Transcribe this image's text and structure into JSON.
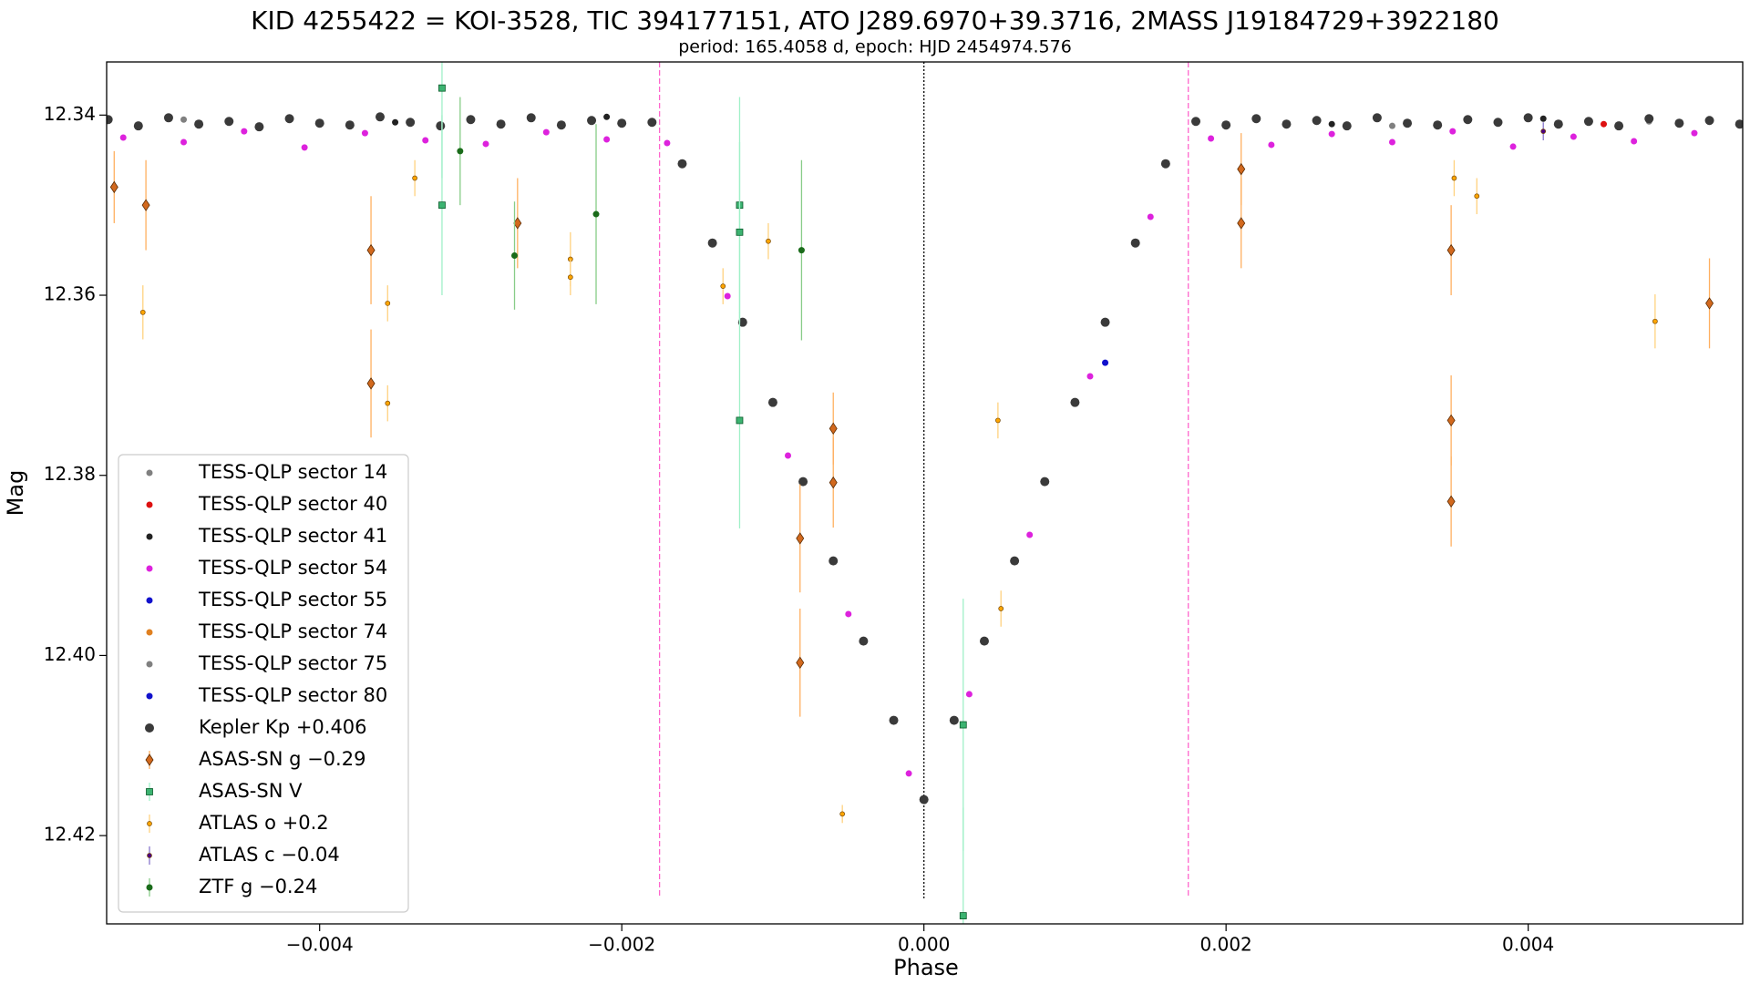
{
  "chart_data": {
    "type": "scatter",
    "title": "KID 4255422 = KOI-3528, TIC 394177151, ATO J289.6970+39.3716, 2MASS J19184729+3922180",
    "subtitle": "period: 165.4058 d, epoch: HJD 2454974.576",
    "x_label": "Phase",
    "y_label": "Mag",
    "xlim": [
      -0.00541,
      0.00542
    ],
    "ylim": [
      12.3341,
      12.4298
    ],
    "y_inverted": true,
    "xticks": [
      {
        "value": -0.004,
        "label": "−0.004"
      },
      {
        "value": -0.002,
        "label": "−0.002"
      },
      {
        "value": 0,
        "label": "0.000"
      },
      {
        "value": 0.002,
        "label": "0.002"
      },
      {
        "value": 0.004,
        "label": "0.004"
      }
    ],
    "yticks": [
      12.34,
      12.36,
      12.38,
      {
        "value": 12.4,
        "label": "12.40"
      },
      12.42
    ],
    "legend": "lower left",
    "vlines": [
      {
        "x": -0.00175,
        "color": "#ff66cc",
        "style": "dashed"
      },
      {
        "x": 0,
        "color": "#000000",
        "style": "dotted"
      },
      {
        "x": 0.00175,
        "color": "#ff66cc",
        "style": "dashed"
      }
    ],
    "series": [
      {
        "name": "TESS-QLP sector 14",
        "color": "#808080",
        "marker": "circle",
        "x": [
          -0.0049,
          0.0031
        ],
        "values": [
          12.3405,
          12.3412
        ]
      },
      {
        "name": "TESS-QLP sector 40",
        "color": "#dd1111",
        "marker": "circle",
        "x": [
          0.0045
        ],
        "values": [
          12.341
        ]
      },
      {
        "name": "TESS-QLP sector 41",
        "color": "#222222",
        "marker": "circle",
        "x": [
          -0.0035,
          -0.0021,
          0.0027,
          0.0041
        ],
        "values": [
          12.3408,
          12.3402,
          12.341,
          12.3404
        ]
      },
      {
        "name": "TESS-QLP sector 54",
        "color": "#dd22dd",
        "marker": "circle",
        "x": [
          -0.0053,
          -0.0049,
          -0.0045,
          -0.0041,
          -0.0037,
          -0.0033,
          -0.0029,
          -0.0025,
          -0.0021,
          -0.0017,
          -0.0013,
          -0.0009,
          -0.0005,
          -0.0001,
          0.0003,
          0.0007,
          0.0011,
          0.0015,
          0.0019,
          0.0023,
          0.0027,
          0.0031,
          0.0035,
          0.0039,
          0.0043,
          0.0047,
          0.0051
        ],
        "values": [
          12.3425,
          12.343,
          12.3418,
          12.3436,
          12.342,
          12.3428,
          12.3432,
          12.3419,
          12.3427,
          12.3431,
          12.3601,
          12.3778,
          12.3954,
          12.4131,
          12.4043,
          12.3866,
          12.369,
          12.3513,
          12.3426,
          12.3433,
          12.3421,
          12.343,
          12.3418,
          12.3435,
          12.3424,
          12.3429,
          12.342
        ]
      },
      {
        "name": "TESS-QLP sector 55",
        "color": "#1111cc",
        "marker": "circle",
        "x": [
          0.0012
        ],
        "values": [
          12.3675
        ]
      },
      {
        "name": "TESS-QLP sector 74",
        "color": "#e08020",
        "marker": "circle",
        "x": [
          -0.0044
        ],
        "values": [
          12.3412
        ]
      },
      {
        "name": "TESS-QLP sector 75",
        "color": "#808080",
        "marker": "circle",
        "x": [
          0.0048
        ],
        "values": [
          12.3407
        ]
      },
      {
        "name": "TESS-QLP sector 80",
        "color": "#1111cc",
        "marker": "circle",
        "x": [
          -0.0028
        ],
        "values": [
          12.3411
        ]
      },
      {
        "name": "Kepler Kp +0.406",
        "color": "#3a3a3a",
        "marker": "bigcircle",
        "x": [
          -0.0054,
          -0.0052,
          -0.005,
          -0.0048,
          -0.0046,
          -0.0044,
          -0.0042,
          -0.004,
          -0.0038,
          -0.0036,
          -0.0034,
          -0.0032,
          -0.003,
          -0.0028,
          -0.0026,
          -0.0024,
          -0.0022,
          -0.002,
          -0.0018,
          -0.0016,
          -0.0014,
          -0.0012,
          -0.001,
          -0.0008,
          -0.0006,
          -0.0004,
          -0.0002,
          0,
          0.0002,
          0.0004,
          0.0006,
          0.0008,
          0.001,
          0.0012,
          0.0014,
          0.0016,
          0.0018,
          0.002,
          0.0022,
          0.0024,
          0.0026,
          0.0028,
          0.003,
          0.0032,
          0.0034,
          0.0036,
          0.0038,
          0.004,
          0.0042,
          0.0044,
          0.0046,
          0.0048,
          0.005,
          0.0052,
          0.0054
        ],
        "values": [
          12.3405,
          12.3412,
          12.3403,
          12.341,
          12.3407,
          12.3413,
          12.3404,
          12.3409,
          12.3411,
          12.3402,
          12.3408,
          12.3412,
          12.3405,
          12.341,
          12.3403,
          12.3411,
          12.3406,
          12.3409,
          12.3408,
          12.3454,
          12.3542,
          12.363,
          12.3719,
          12.3807,
          12.3895,
          12.3984,
          12.4072,
          12.416,
          12.4072,
          12.3984,
          12.3895,
          12.3807,
          12.3719,
          12.363,
          12.3542,
          12.3454,
          12.3407,
          12.3411,
          12.3404,
          12.341,
          12.3406,
          12.3412,
          12.3403,
          12.3409,
          12.3411,
          12.3405,
          12.3408,
          12.3403,
          12.341,
          12.3407,
          12.3412,
          12.3404,
          12.3409,
          12.3406,
          12.341
        ]
      },
      {
        "name": "ASAS-SN g −0.29",
        "color": "#d2691e",
        "errcolor": "#ffb060",
        "marker": "diamond",
        "x": [
          -0.00536,
          -0.00515,
          -0.00366,
          -0.00366,
          -0.00269,
          -0.0006,
          -0.0006,
          -0.00082,
          -0.00082,
          0.0021,
          0.0021,
          0.00349,
          0.00349,
          0.00349,
          0.0052
        ],
        "values": [
          12.348,
          12.35,
          12.355,
          12.3698,
          12.352,
          12.3748,
          12.3808,
          12.387,
          12.4008,
          12.346,
          12.352,
          12.355,
          12.3739,
          12.3829,
          12.3609
        ],
        "errors": [
          0.004,
          0.005,
          0.006,
          0.006,
          0.005,
          0.004,
          0.005,
          0.006,
          0.006,
          0.004,
          0.005,
          0.005,
          0.005,
          0.005,
          0.005
        ]
      },
      {
        "name": "ASAS-SN V",
        "color": "#3cb371",
        "errcolor": "#a0f0c8",
        "marker": "square",
        "x": [
          -0.00319,
          -0.00319,
          -0.00122,
          -0.00122,
          -0.00122,
          0.00026,
          0.00026
        ],
        "values": [
          12.337,
          12.35,
          12.35,
          12.353,
          12.3739,
          12.4077,
          12.4289
        ],
        "errors": [
          0.01,
          0.01,
          0.012,
          0.01,
          0.012,
          0.014,
          0.012
        ]
      },
      {
        "name": "ATLAS o +0.2",
        "color": "#ffa500",
        "errcolor": "#ffd27f",
        "marker": "small",
        "x": [
          -0.00517,
          -0.00355,
          -0.00355,
          -0.00337,
          -0.00234,
          -0.00234,
          -0.00133,
          -0.00103,
          -0.00054,
          0.00049,
          0.00051,
          0.00351,
          0.00366,
          0.00484
        ],
        "values": [
          12.3619,
          12.3609,
          12.372,
          12.347,
          12.356,
          12.358,
          12.359,
          12.354,
          12.4176,
          12.3739,
          12.3948,
          12.347,
          12.349,
          12.3629
        ],
        "errors": [
          0.003,
          0.002,
          0.002,
          0.002,
          0.003,
          0.002,
          0.002,
          0.002,
          0.001,
          0.002,
          0.002,
          0.002,
          0.002,
          0.003
        ]
      },
      {
        "name": "ATLAS c −0.04",
        "color": "#4b0082",
        "errcolor": "#8877cc",
        "marker": "small",
        "x": [
          0.0041
        ],
        "values": [
          12.3418
        ],
        "errors": [
          0.001
        ]
      },
      {
        "name": "ZTF g −0.24",
        "color": "#1a6b1a",
        "errcolor": "#88cc88",
        "marker": "circle",
        "x": [
          -0.00271,
          -0.00307,
          -0.00217,
          -0.00081
        ],
        "values": [
          12.3556,
          12.344,
          12.351,
          12.355
        ],
        "errors": [
          0.006,
          0.006,
          0.01,
          0.01
        ]
      }
    ]
  }
}
